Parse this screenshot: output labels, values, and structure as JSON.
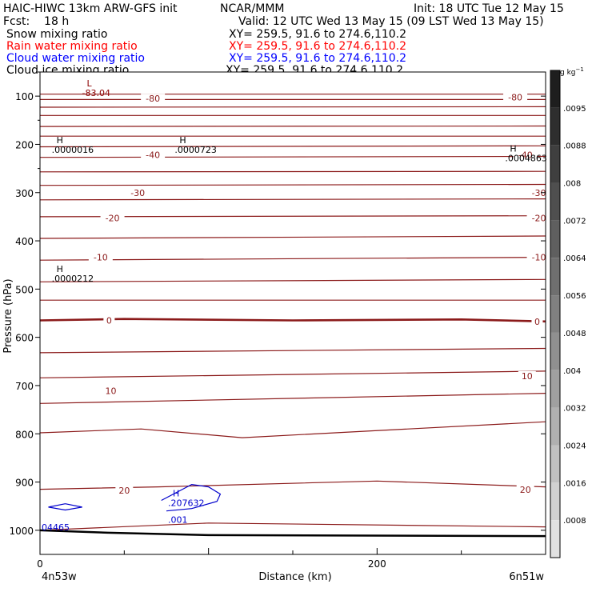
{
  "header": {
    "model": "HAIC-HIWC 13km ARW-GFS init",
    "org": "NCAR/MMM",
    "init": "Init: 18 UTC Tue 12 May 15",
    "fcst": "Fcst:    18 h",
    "valid": "Valid: 12 UTC Wed 13 May 15 (09 LST Wed 13 May 15)"
  },
  "fields": [
    {
      "name": "Snow mixing ratio",
      "xy": "XY= 259.5, 91.6 to 274.6,110.2",
      "color": "#000000"
    },
    {
      "name": "Rain water mixing ratio",
      "xy": "XY= 259.5, 91.6 to 274.6,110.2",
      "color": "#ff0000"
    },
    {
      "name": "Cloud water mixing ratio",
      "xy": "XY= 259.5, 91.6 to 274.6,110.2",
      "color": "#0000ff"
    },
    {
      "name": "Cloud ice mixing ratio",
      "xy": "XY= 259.5, 91.6 to 274.6,110.2",
      "color": "#000000"
    }
  ],
  "chart_data": {
    "type": "contour",
    "xlabel": "Distance (km)",
    "ylabel": "Pressure (hPa)",
    "xlim": [
      0,
      300
    ],
    "ylim": [
      1050,
      50
    ],
    "xticks": [
      "0",
      "200"
    ],
    "yticks": [
      "100",
      "200",
      "300",
      "400",
      "500",
      "600",
      "700",
      "800",
      "900",
      "1000"
    ],
    "x_endpoints": {
      "left": "4n53w",
      "right": "6n51w"
    },
    "colorbar": {
      "unit": "g kg",
      "unit_exp": "−1",
      "labels": [
        ".0095",
        ".0088",
        ".008",
        ".0072",
        ".0064",
        ".0056",
        ".0048",
        ".004",
        ".0032",
        ".0024",
        ".0016",
        ".0008"
      ]
    },
    "temperature_labels": [
      {
        "text": "-80",
        "x": 67,
        "p": 105
      },
      {
        "text": "-80",
        "x": 282,
        "p": 102
      },
      {
        "text": "-40",
        "x": 67,
        "p": 222
      },
      {
        "text": "-40",
        "x": 288,
        "p": 222
      },
      {
        "text": "-30",
        "x": 58,
        "p": 300
      },
      {
        "text": "-30",
        "x": 296,
        "p": 300
      },
      {
        "text": "-20",
        "x": 43,
        "p": 353
      },
      {
        "text": "-20",
        "x": 296,
        "p": 353
      },
      {
        "text": "-10",
        "x": 36,
        "p": 434
      },
      {
        "text": "-10",
        "x": 296,
        "p": 434
      },
      {
        "text": "0",
        "x": 41,
        "p": 565
      },
      {
        "text": "0",
        "x": 295,
        "p": 567
      },
      {
        "text": "10",
        "x": 289,
        "p": 680
      },
      {
        "text": "10",
        "x": 42,
        "p": 711
      },
      {
        "text": "20",
        "x": 50,
        "p": 917
      },
      {
        "text": "20",
        "x": 288,
        "p": 916
      }
    ],
    "extrema": [
      {
        "mark": "L",
        "value": "-83.04",
        "x": 24,
        "p": 80,
        "color": "#8b0000"
      },
      {
        "mark": "H",
        "value": ".0000016",
        "x": 6,
        "p": 198,
        "color": "#000000"
      },
      {
        "mark": "H",
        "value": ".0000723",
        "x": 79,
        "p": 198,
        "color": "#000000"
      },
      {
        "mark": "H",
        "value": ".0004863",
        "x": 275,
        "p": 215,
        "color": "#000000"
      },
      {
        "mark": "H",
        "value": ".0000212",
        "x": 6,
        "p": 465,
        "color": "#000000"
      },
      {
        "mark": "H",
        "value": ".207632",
        "x": 75,
        "p": 930,
        "color": "#0000cc"
      },
      {
        "mark": "",
        "value": ".001",
        "x": 75,
        "p": 965,
        "color": "#0000cc"
      },
      {
        "mark": "",
        "value": "04465",
        "x": 0,
        "p": 980,
        "color": "#0000cc"
      }
    ],
    "isotherms": [
      {
        "label": "-80",
        "points": [
          [
            0,
            96
          ],
          [
            300,
            96
          ]
        ]
      },
      {
        "label": "",
        "points": [
          [
            0,
            107
          ],
          [
            300,
            107
          ]
        ]
      },
      {
        "label": "-80",
        "points": [
          [
            0,
            123
          ],
          [
            300,
            122
          ]
        ]
      },
      {
        "label": "",
        "points": [
          [
            0,
            140
          ],
          [
            300,
            140
          ]
        ]
      },
      {
        "label": "",
        "points": [
          [
            0,
            163
          ],
          [
            300,
            162
          ]
        ]
      },
      {
        "label": "",
        "points": [
          [
            0,
            183
          ],
          [
            300,
            183
          ]
        ]
      },
      {
        "label": "",
        "points": [
          [
            0,
            205
          ],
          [
            300,
            203
          ]
        ]
      },
      {
        "label": "-40",
        "points": [
          [
            0,
            227
          ],
          [
            300,
            225
          ]
        ]
      },
      {
        "label": "-30",
        "points": [
          [
            0,
            257
          ],
          [
            300,
            256
          ]
        ]
      },
      {
        "label": "-30",
        "points": [
          [
            0,
            285
          ],
          [
            300,
            283
          ]
        ]
      },
      {
        "label": "-20",
        "points": [
          [
            0,
            315
          ],
          [
            300,
            313
          ]
        ]
      },
      {
        "label": "-20",
        "points": [
          [
            0,
            350
          ],
          [
            300,
            348
          ]
        ]
      },
      {
        "label": "-10",
        "points": [
          [
            0,
            395
          ],
          [
            300,
            390
          ]
        ]
      },
      {
        "label": "-10",
        "points": [
          [
            0,
            440
          ],
          [
            300,
            434
          ]
        ]
      },
      {
        "label": "",
        "points": [
          [
            0,
            485
          ],
          [
            300,
            480
          ]
        ]
      },
      {
        "label": "",
        "points": [
          [
            0,
            523
          ],
          [
            300,
            523
          ]
        ]
      },
      {
        "label": "0",
        "points": [
          [
            0,
            565
          ],
          [
            50,
            562
          ],
          [
            150,
            565
          ],
          [
            250,
            563
          ],
          [
            300,
            567
          ]
        ]
      },
      {
        "label": "",
        "points": [
          [
            0,
            632
          ],
          [
            300,
            623
          ]
        ]
      },
      {
        "label": "10",
        "points": [
          [
            0,
            684
          ],
          [
            300,
            670
          ]
        ]
      },
      {
        "label": "10",
        "points": [
          [
            0,
            737
          ],
          [
            300,
            716
          ]
        ]
      },
      {
        "label": "",
        "points": [
          [
            0,
            798
          ],
          [
            60,
            790
          ],
          [
            120,
            808
          ],
          [
            300,
            775
          ]
        ]
      },
      {
        "label": "20",
        "points": [
          [
            0,
            915
          ],
          [
            70,
            910
          ],
          [
            200,
            898
          ],
          [
            300,
            910
          ]
        ]
      },
      {
        "label": "",
        "points": [
          [
            0,
            1000
          ],
          [
            100,
            985
          ],
          [
            300,
            993
          ]
        ]
      }
    ],
    "terrain_line": {
      "label": "",
      "points": [
        [
          0,
          1000
        ],
        [
          40,
          1005
        ],
        [
          100,
          1010
        ],
        [
          300,
          1012
        ]
      ]
    },
    "cloud_water_contours": [
      {
        "label": "",
        "points": [
          [
            75,
            960
          ],
          [
            90,
            955
          ],
          [
            105,
            940
          ],
          [
            107,
            925
          ],
          [
            100,
            910
          ],
          [
            90,
            905
          ],
          [
            72,
            938
          ]
        ]
      },
      {
        "label": "",
        "points": [
          [
            15,
            945
          ],
          [
            25,
            952
          ],
          [
            15,
            958
          ],
          [
            5,
            952
          ],
          [
            15,
            945
          ]
        ]
      }
    ]
  }
}
